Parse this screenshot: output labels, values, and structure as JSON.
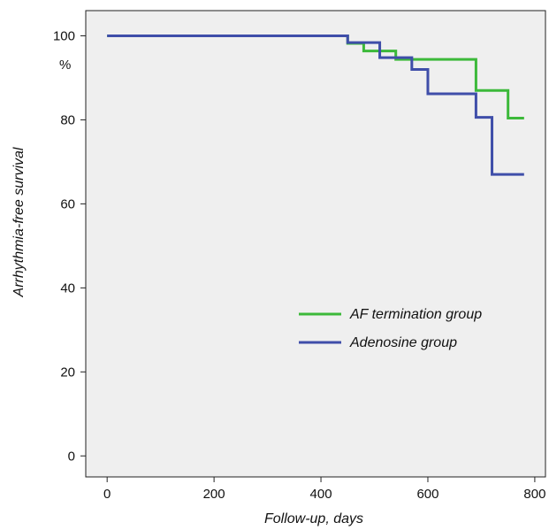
{
  "chart_data": {
    "type": "line",
    "xlabel": "Follow-up, days",
    "ylabel": "Arrhythmia-free survival",
    "y_unit": "%",
    "xlim": [
      -40,
      820
    ],
    "ylim": [
      -5,
      106
    ],
    "x_ticks": [
      0,
      200,
      400,
      600,
      800
    ],
    "y_ticks": [
      0,
      20,
      40,
      60,
      80,
      100
    ],
    "x_tick_labels": [
      "0",
      "200",
      "400",
      "600",
      "800"
    ],
    "y_tick_labels": [
      "0",
      "20",
      "40",
      "60",
      "80",
      "100"
    ],
    "grid": false,
    "legend_position": "center-right",
    "series": [
      {
        "name": "AF termination group",
        "color": "#3cb93a",
        "step_points": [
          [
            0,
            100
          ],
          [
            450,
            98.2
          ],
          [
            480,
            96.4
          ],
          [
            540,
            94.4
          ],
          [
            690,
            87.0
          ],
          [
            750,
            80.4
          ],
          [
            780,
            80.4
          ]
        ]
      },
      {
        "name": "Adenosine group",
        "color": "#3f4ea9",
        "step_points": [
          [
            0,
            100
          ],
          [
            450,
            98.4
          ],
          [
            510,
            94.8
          ],
          [
            570,
            92.0
          ],
          [
            600,
            86.2
          ],
          [
            690,
            80.6
          ],
          [
            720,
            67.0
          ],
          [
            780,
            67.0
          ]
        ]
      }
    ]
  }
}
